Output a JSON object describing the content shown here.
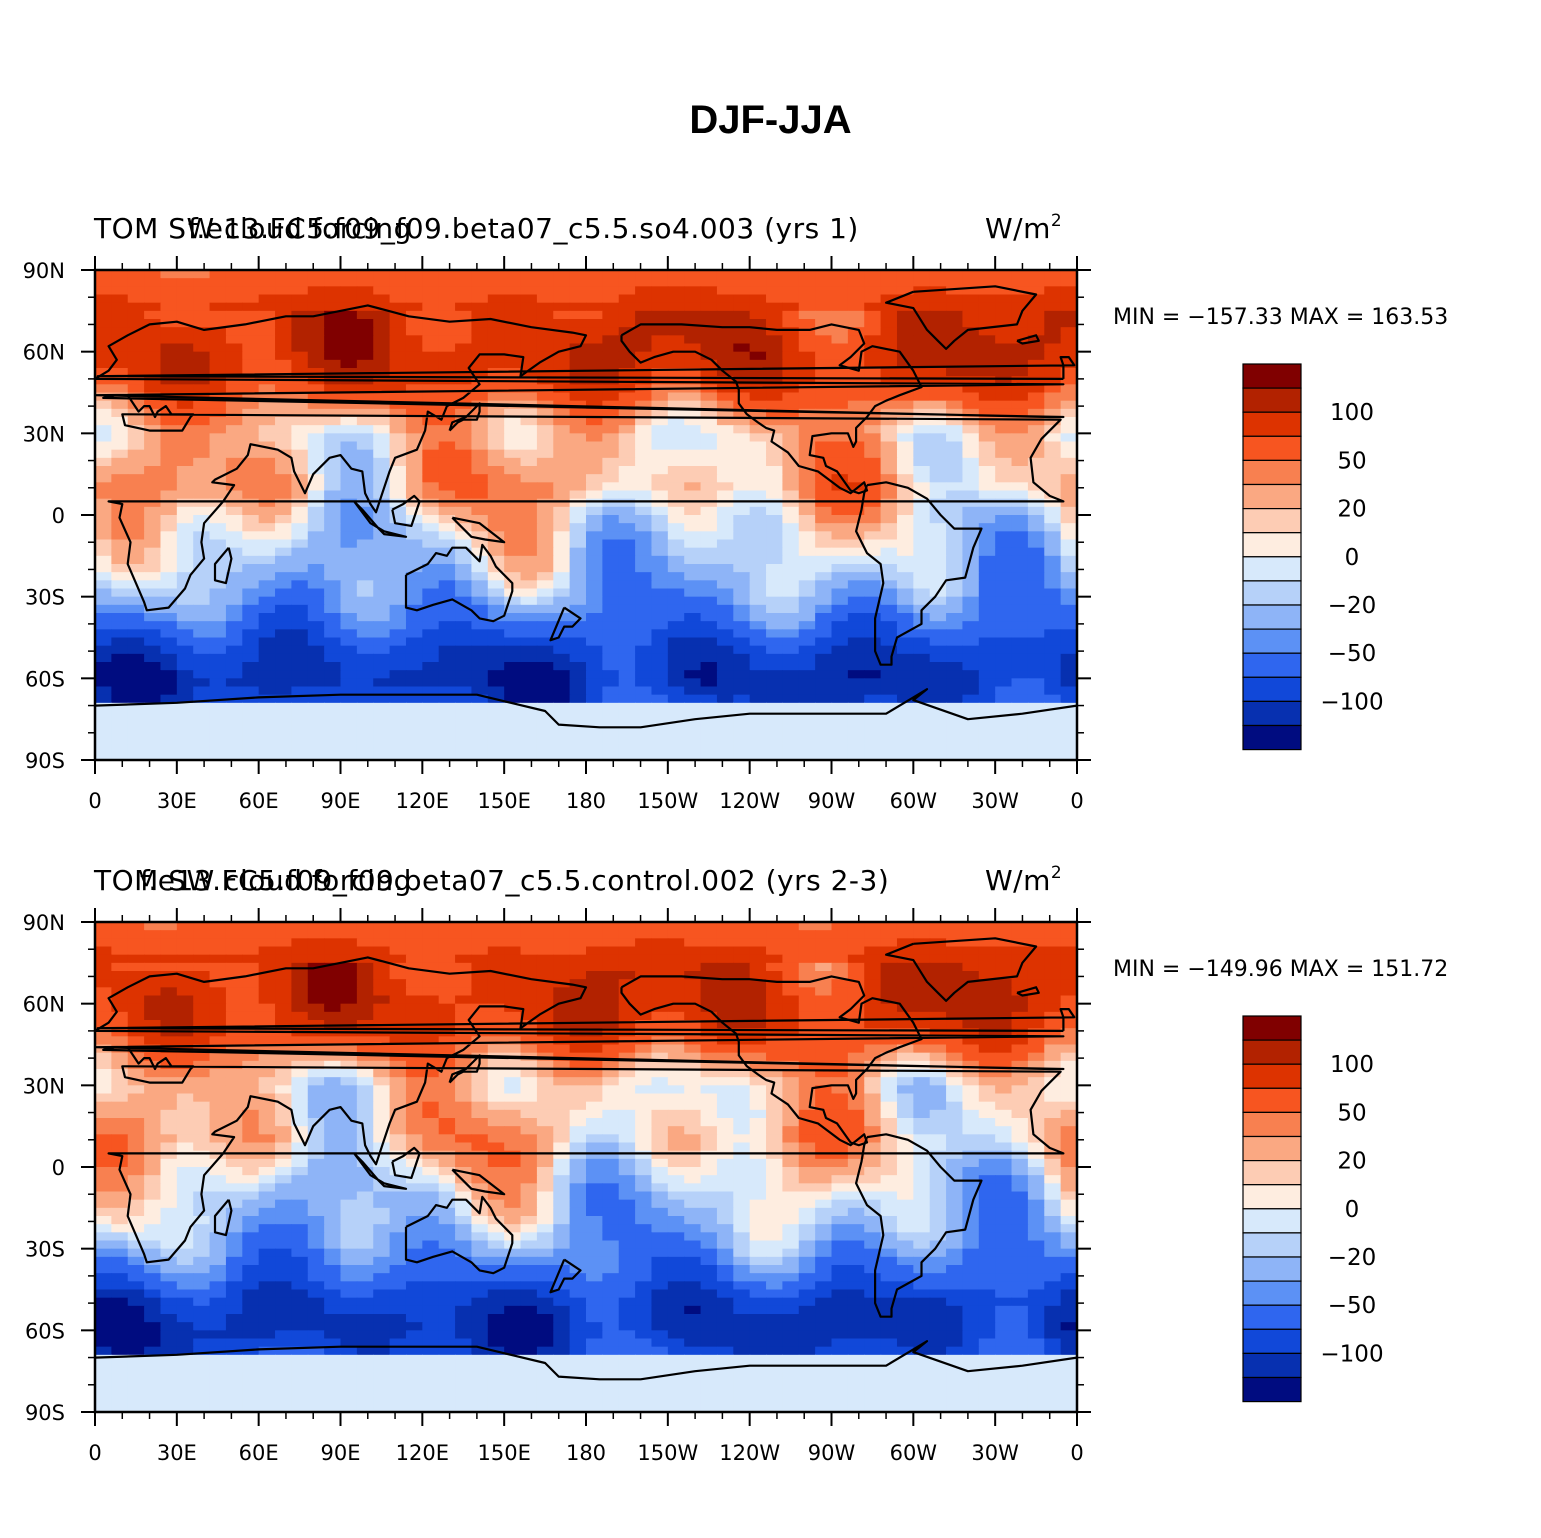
{
  "title": "DJF-JJA",
  "panels": [
    {
      "left_title": "TOM SW cloud forcing",
      "case_title": "f.e13.FC5.f09_f09.beta07_c5.5.so4.003 (yrs 1)",
      "units_base": "W/m",
      "units_exp": "2",
      "stats": "MIN = −157.33  MAX = 163.53",
      "min": -157.33,
      "max": 163.53
    },
    {
      "left_title": "TOM SW cloud forcing",
      "case_title": "f.e13.FC5.f09_f09.beta07_c5.5.control.002 (yrs 2-3)",
      "units_base": "W/m",
      "units_exp": "2",
      "stats": "MIN = −149.96  MAX = 151.72",
      "min": -149.96,
      "max": 151.72
    }
  ],
  "axes": {
    "x_ticks": [
      "0",
      "30E",
      "60E",
      "90E",
      "120E",
      "150E",
      "180",
      "150W",
      "120W",
      "90W",
      "60W",
      "30W",
      "0"
    ],
    "y_ticks": [
      "90N",
      "60N",
      "30N",
      "0",
      "30S",
      "60S",
      "90S"
    ]
  },
  "colorbar": {
    "labels": [
      "100",
      "50",
      "20",
      "0",
      "−20",
      "−50",
      "−100"
    ],
    "colors": [
      "#800000",
      "#b22200",
      "#dd3300",
      "#f75520",
      "#f88050",
      "#faa882",
      "#fdccb4",
      "#feede0",
      "#d7e9fb",
      "#b6d1f9",
      "#8eb4f7",
      "#5c91f5",
      "#2f66ef",
      "#1148d9",
      "#0730b0",
      "#000c80"
    ]
  },
  "chart_data": {
    "type": "heatmap",
    "title": "DJF-JJA",
    "xlim": [
      0,
      360
    ],
    "ylim": [
      -90,
      90
    ],
    "contour_levels": [
      -100,
      -50,
      -20,
      0,
      20,
      50,
      100
    ],
    "zonal_profile_note_free": true,
    "panels": [
      {
        "name": "f.e13.FC5.f09_f09.beta07_c5.5.so4.003 (yrs 1)",
        "lat": [
          90,
          80,
          70,
          60,
          50,
          40,
          30,
          20,
          10,
          0,
          -10,
          -20,
          -30,
          -40,
          -50,
          -60,
          -70,
          -80,
          -90
        ],
        "zonal_mean_approx": [
          55,
          75,
          90,
          100,
          85,
          45,
          15,
          20,
          25,
          5,
          -10,
          -20,
          -35,
          -60,
          -95,
          -115,
          -90,
          -5,
          -5
        ]
      },
      {
        "name": "f.e13.FC5.f09_f09.beta07_c5.5.control.002 (yrs 2-3)",
        "lat": [
          90,
          80,
          70,
          60,
          50,
          40,
          30,
          20,
          10,
          0,
          -10,
          -20,
          -30,
          -40,
          -50,
          -60,
          -70,
          -80,
          -90
        ],
        "zonal_mean_approx": [
          55,
          75,
          90,
          95,
          80,
          40,
          10,
          15,
          20,
          5,
          -12,
          -22,
          -38,
          -65,
          -100,
          -112,
          -85,
          -5,
          -5
        ]
      }
    ]
  }
}
